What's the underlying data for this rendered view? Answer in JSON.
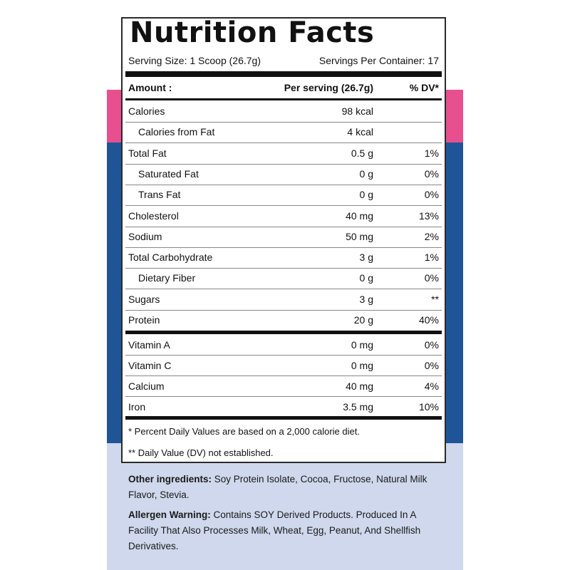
{
  "label": {
    "title": "Nutrition Facts",
    "serving_size": "Serving Size: 1 Scoop (26.7g)",
    "servings_per_container": "Servings Per Container: 17",
    "header": {
      "amount": "Amount :",
      "per_serving": "Per serving (26.7g)",
      "dv": "% DV*"
    },
    "rows": [
      {
        "label": "Calories",
        "value": "98 kcal",
        "dv": "",
        "indent": false
      },
      {
        "label": "Calories from Fat",
        "value": "4 kcal",
        "dv": "",
        "indent": true
      },
      {
        "label": "Total Fat",
        "value": "0.5 g",
        "dv": "1%",
        "indent": false
      },
      {
        "label": "Saturated Fat",
        "value": "0 g",
        "dv": "0%",
        "indent": true
      },
      {
        "label": "Trans Fat",
        "value": "0 g",
        "dv": "0%",
        "indent": true
      },
      {
        "label": "Cholesterol",
        "value": "40 mg",
        "dv": "13%",
        "indent": false
      },
      {
        "label": "Sodium",
        "value": "50 mg",
        "dv": "2%",
        "indent": false
      },
      {
        "label": "Total Carbohydrate",
        "value": "3 g",
        "dv": "1%",
        "indent": false
      },
      {
        "label": "Dietary Fiber",
        "value": "0 g",
        "dv": "0%",
        "indent": true
      },
      {
        "label": "Sugars",
        "value": "3 g",
        "dv": "**",
        "indent": false
      },
      {
        "label": "Protein",
        "value": "20 g",
        "dv": "40%",
        "indent": false
      }
    ],
    "vitamins": [
      {
        "label": "Vitamin A",
        "value": "0 mg",
        "dv": "0%"
      },
      {
        "label": "Vitamin C",
        "value": "0 mg",
        "dv": "0%"
      },
      {
        "label": "Calcium",
        "value": "40 mg",
        "dv": "4%"
      },
      {
        "label": "Iron",
        "value": "3.5 mg",
        "dv": "10%"
      }
    ],
    "footnote_1": "* Percent Daily Values are based on a 2,000 calorie diet.",
    "footnote_2": "** Daily Value (DV) not established."
  },
  "info": {
    "ingredients_label": "Other ingredients:",
    "ingredients_text": " Soy Protein Isolate, Cocoa, Fructose, Natural Milk Flavor, Stevia.",
    "allergen_label": "Allergen Warning:",
    "allergen_text": " Contains SOY Derived Products. Produced In A Facility That Also Processes Milk, Wheat, Egg, Peanut, And Shellfish Derivatives."
  },
  "colors": {
    "pink": "#e74f8e",
    "blue": "#1f5597",
    "light_blue": "#cfd8ec"
  }
}
